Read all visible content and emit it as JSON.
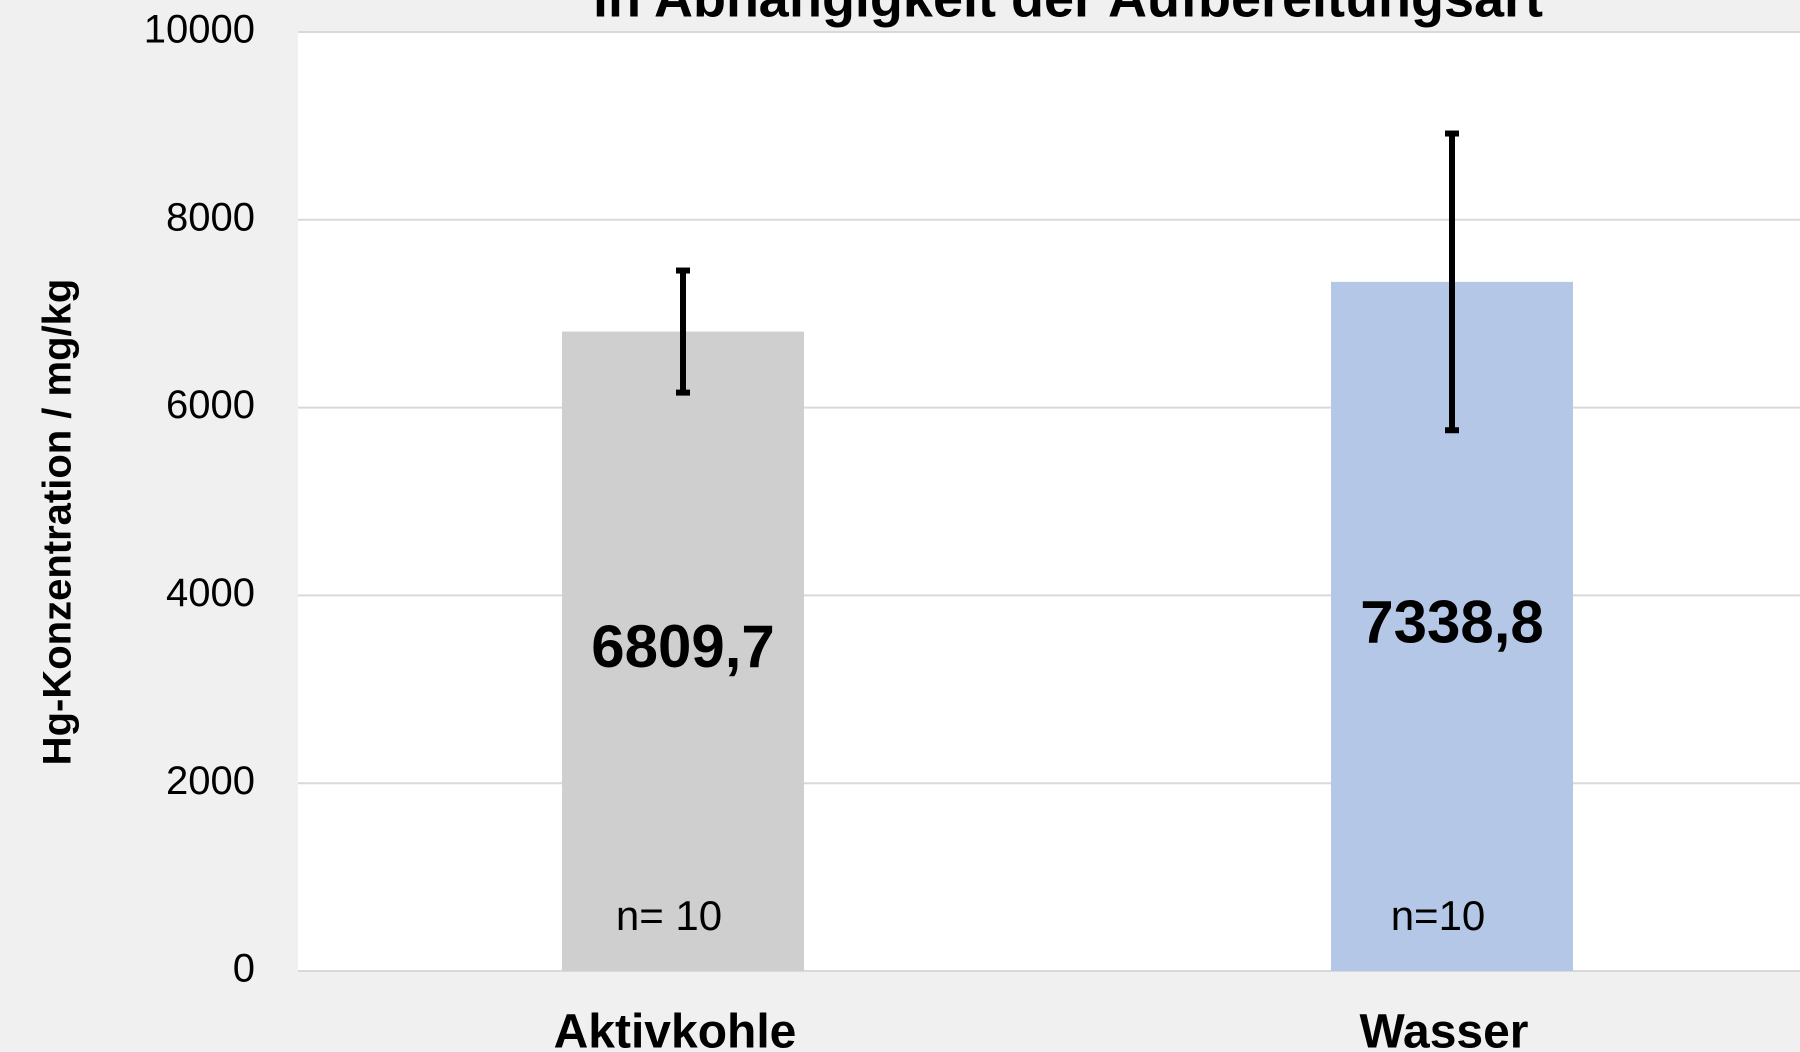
{
  "chart_data": {
    "type": "bar",
    "title": "in Abhängigkeit der Aufbereitungsart",
    "y_label": "Hg-Konzentration / mg/kg",
    "categories": [
      "Aktivkohle",
      "Wasser"
    ],
    "values": [
      6809.7,
      7338.8
    ],
    "value_labels": [
      "6809,7",
      "7338,8"
    ],
    "errors": [
      650,
      1580
    ],
    "colors": [
      "#d0cfd0",
      "#b4c7e7"
    ],
    "annotations": [
      "n= 10",
      "n=10"
    ],
    "ylim": [
      0,
      10000
    ],
    "yticks": [
      0,
      2000,
      4000,
      6000,
      8000,
      10000
    ],
    "grid": true
  }
}
